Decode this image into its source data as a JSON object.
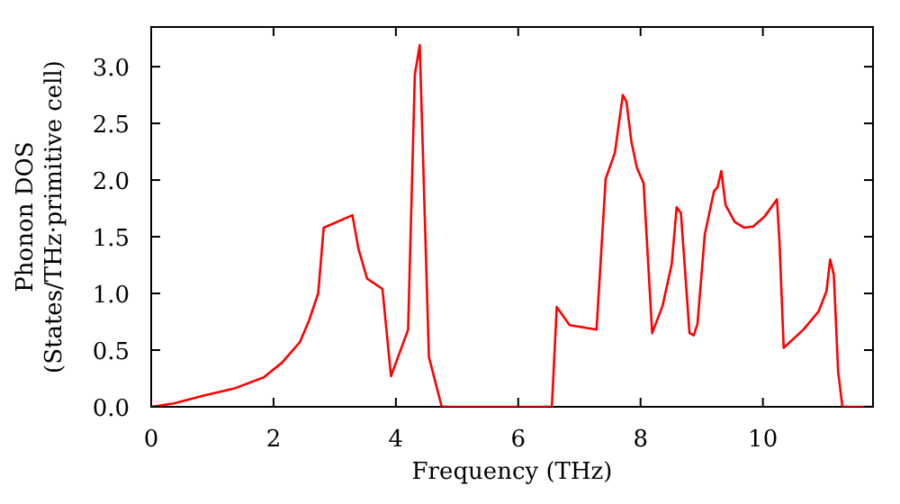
{
  "chart_data": {
    "type": "line",
    "xlabel": "Frequency (THz)",
    "ylabel": "Phonon DOS\n(States/THz·primitive cell)",
    "xlim": [
      0,
      11.8
    ],
    "ylim": [
      0,
      3.35
    ],
    "xticks": [
      0,
      2,
      4,
      6,
      8,
      10
    ],
    "yticks": [
      {
        "value": 0,
        "label": "0.0"
      },
      {
        "value": 0.5,
        "label": "0.5"
      },
      {
        "value": 1,
        "label": "1.0"
      },
      {
        "value": 1.5,
        "label": "1.5"
      },
      {
        "value": 2,
        "label": "2.0"
      },
      {
        "value": 2.5,
        "label": "2.5"
      },
      {
        "value": 3,
        "label": "3.0"
      }
    ],
    "grid": false,
    "legend": false,
    "marker": "none",
    "line_style": "solid",
    "series": [
      {
        "color": "#ff0000",
        "x": [
          0,
          0.37,
          0.86,
          1.35,
          1.84,
          2.14,
          2.43,
          2.58,
          2.73,
          2.82,
          3.29,
          3.39,
          3.53,
          3.78,
          3.92,
          4.2,
          4.31,
          4.39,
          4.54,
          4.75,
          6.55,
          6.63,
          6.84,
          7.28,
          7.43,
          7.58,
          7.71,
          7.77,
          7.85,
          7.94,
          8.05,
          8.19,
          8.36,
          8.51,
          8.59,
          8.66,
          8.8,
          8.87,
          8.93,
          9.05,
          9.2,
          9.26,
          9.32,
          9.39,
          9.54,
          9.69,
          9.84,
          10.03,
          10.23,
          10.27,
          10.34,
          10.66,
          10.91,
          11.04,
          11.1,
          11.16,
          11.23,
          11.3,
          11.8
        ],
        "values": [
          0,
          0.03,
          0.1,
          0.16,
          0.26,
          0.39,
          0.57,
          0.76,
          1.0,
          1.58,
          1.69,
          1.39,
          1.13,
          1.04,
          0.27,
          0.68,
          2.93,
          3.19,
          0.44,
          0,
          0,
          0.88,
          0.72,
          0.68,
          2.01,
          2.24,
          2.75,
          2.69,
          2.34,
          2.11,
          1.97,
          0.65,
          0.89,
          1.26,
          1.76,
          1.71,
          0.65,
          0.63,
          0.73,
          1.52,
          1.9,
          1.94,
          2.08,
          1.78,
          1.63,
          1.58,
          1.59,
          1.68,
          1.83,
          1.47,
          0.52,
          0.68,
          0.84,
          1.02,
          1.3,
          1.16,
          0.31,
          0,
          0
        ]
      }
    ]
  }
}
